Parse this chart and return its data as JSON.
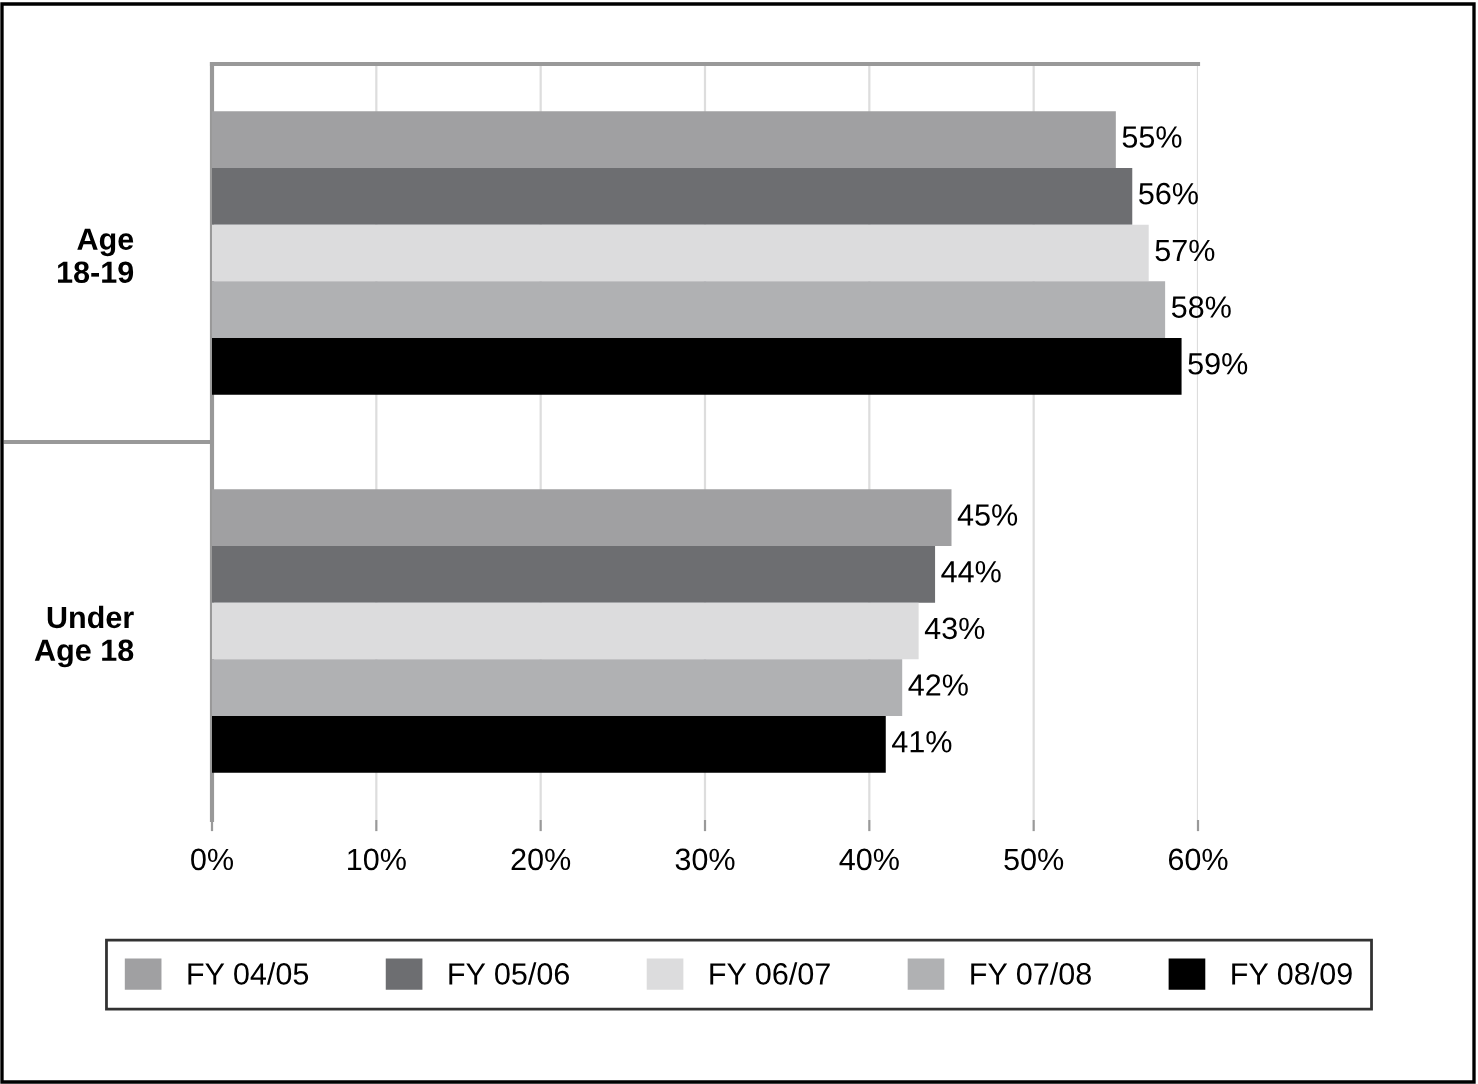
{
  "chart_data": {
    "type": "bar",
    "orientation": "horizontal",
    "categories": [
      "Age\n18-19",
      "Under\nAge 18"
    ],
    "series": [
      {
        "name": "FY 04/05",
        "color": "#a0a0a2",
        "values": [
          55,
          45
        ],
        "value_labels": [
          "55%",
          "45%"
        ]
      },
      {
        "name": "FY 05/06",
        "color": "#6d6e71",
        "values": [
          56,
          44
        ],
        "value_labels": [
          "56%",
          "44%"
        ]
      },
      {
        "name": "FY 06/07",
        "color": "#dcdcdd",
        "values": [
          57,
          43
        ],
        "value_labels": [
          "57%",
          "43%"
        ]
      },
      {
        "name": "FY 07/08",
        "color": "#b0b1b3",
        "values": [
          58,
          42
        ],
        "value_labels": [
          "58%",
          "42%"
        ]
      },
      {
        "name": "FY 08/09",
        "color": "#000000",
        "values": [
          59,
          41
        ],
        "value_labels": [
          "59%",
          "41%"
        ]
      }
    ],
    "xlim": [
      0,
      60
    ],
    "xticks": [
      {
        "value": 0,
        "label": "0%"
      },
      {
        "value": 10,
        "label": "10%"
      },
      {
        "value": 20,
        "label": "20%"
      },
      {
        "value": 30,
        "label": "30%"
      },
      {
        "value": 40,
        "label": "40%"
      },
      {
        "value": 50,
        "label": "50%"
      },
      {
        "value": 60,
        "label": "60%"
      }
    ],
    "grid": "x",
    "legend": "bottom"
  }
}
